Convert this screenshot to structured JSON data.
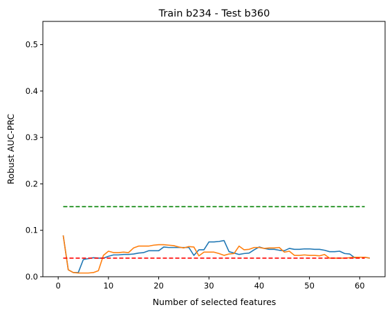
{
  "chart_data": {
    "type": "line",
    "title": "Train b234 - Test b360",
    "xlabel": "Number of selected features",
    "ylabel": "Robust AUC-PRC",
    "xlim": [
      -3.05,
      65.05
    ],
    "ylim": [
      0.0,
      0.55
    ],
    "xticks": [
      0,
      10,
      20,
      30,
      40,
      50,
      60
    ],
    "yticks": [
      0.0,
      0.1,
      0.2,
      0.3,
      0.4,
      0.5
    ],
    "xtick_labels": [
      "0",
      "10",
      "20",
      "30",
      "40",
      "50",
      "60"
    ],
    "ytick_labels": [
      "0.0",
      "0.1",
      "0.2",
      "0.3",
      "0.4",
      "0.5"
    ],
    "grid": false,
    "legend": null,
    "series": [
      {
        "color": "#1f77b4",
        "style": "solid",
        "x": [
          1,
          2,
          3,
          4,
          5,
          6,
          7,
          8,
          9,
          10,
          11,
          12,
          13,
          14,
          15,
          16,
          17,
          18,
          19,
          20,
          21,
          22,
          23,
          24,
          25,
          26,
          27,
          28,
          29,
          30,
          31,
          32,
          33,
          34,
          35,
          36,
          37,
          38,
          39,
          40,
          41,
          42,
          43,
          44,
          45,
          46,
          47,
          48,
          49,
          50,
          51,
          52,
          53,
          54,
          55,
          56,
          57,
          58,
          59,
          60,
          61,
          62
        ],
        "values": [
          0.089,
          0.015,
          0.009,
          0.009,
          0.037,
          0.039,
          0.041,
          0.04,
          0.04,
          0.044,
          0.047,
          0.047,
          0.048,
          0.048,
          0.049,
          0.051,
          0.052,
          0.056,
          0.056,
          0.056,
          0.064,
          0.063,
          0.063,
          0.063,
          0.063,
          0.063,
          0.046,
          0.058,
          0.058,
          0.075,
          0.075,
          0.076,
          0.078,
          0.054,
          0.051,
          0.048,
          0.05,
          0.051,
          0.058,
          0.064,
          0.061,
          0.059,
          0.059,
          0.057,
          0.056,
          0.061,
          0.059,
          0.059,
          0.06,
          0.06,
          0.059,
          0.059,
          0.057,
          0.054,
          0.054,
          0.055,
          0.05,
          0.049,
          0.041,
          0.042,
          0.042,
          0.04
        ]
      },
      {
        "color": "#ff7f0e",
        "style": "solid",
        "x": [
          1,
          2,
          3,
          4,
          5,
          6,
          7,
          8,
          9,
          10,
          11,
          12,
          13,
          14,
          15,
          16,
          17,
          18,
          19,
          20,
          21,
          22,
          23,
          24,
          25,
          26,
          27,
          28,
          29,
          30,
          31,
          32,
          33,
          34,
          35,
          36,
          37,
          38,
          39,
          40,
          41,
          42,
          43,
          44,
          45,
          46,
          47,
          48,
          49,
          50,
          51,
          52,
          53,
          54,
          55,
          56,
          57,
          58,
          59,
          60,
          61,
          62
        ],
        "values": [
          0.089,
          0.015,
          0.009,
          0.008,
          0.008,
          0.008,
          0.009,
          0.013,
          0.046,
          0.055,
          0.052,
          0.052,
          0.053,
          0.052,
          0.062,
          0.066,
          0.066,
          0.066,
          0.068,
          0.069,
          0.069,
          0.068,
          0.067,
          0.064,
          0.062,
          0.065,
          0.064,
          0.045,
          0.053,
          0.053,
          0.053,
          0.05,
          0.046,
          0.049,
          0.05,
          0.066,
          0.058,
          0.059,
          0.063,
          0.063,
          0.061,
          0.062,
          0.062,
          0.063,
          0.053,
          0.055,
          0.046,
          0.046,
          0.047,
          0.046,
          0.046,
          0.045,
          0.048,
          0.04,
          0.04,
          0.04,
          0.04,
          0.041,
          0.042,
          0.042,
          0.042,
          0.04
        ]
      },
      {
        "color": "#008000",
        "style": "dashed",
        "x": [
          1,
          61
        ],
        "values": [
          0.151,
          0.151
        ]
      },
      {
        "color": "#ff0000",
        "style": "dashed",
        "x": [
          1,
          61
        ],
        "values": [
          0.04,
          0.04
        ]
      }
    ]
  }
}
